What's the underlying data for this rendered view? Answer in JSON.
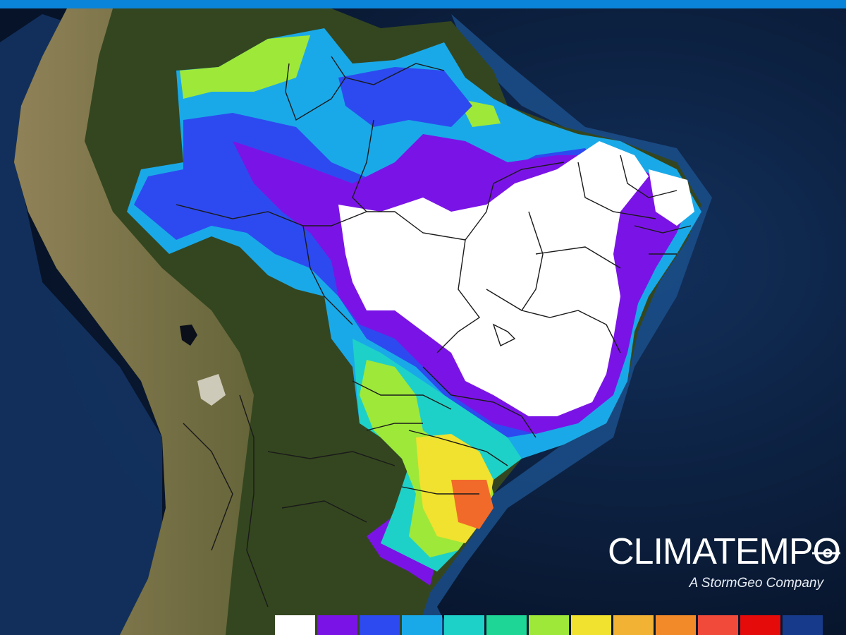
{
  "header": {
    "accent_color": "#0a84d8"
  },
  "map": {
    "region": "Brazil",
    "basemap": "satellite-relief",
    "ocean_color": "#0d2448",
    "land_color": "#33461f",
    "andes_color": "#8c7a55",
    "state_border_color": "#1a1a1a",
    "precipitation_overlay": {
      "heavy_color": "#ffffff",
      "very_high_color": "#7a14e6",
      "high_color": "#2d4af0",
      "moderate_color": "#1aa9e8",
      "medium_color": "#1ed1c8",
      "low_color": "#9ee83a",
      "lower_color": "#f0e22e",
      "lowest_color": "#f2a23a",
      "minimal_color": "#f26a2a"
    }
  },
  "brand": {
    "name": "CLIMATEMPO",
    "tagline": "A StormGeo Company",
    "icon": "arrow-line-icon"
  },
  "legend": {
    "swatches": [
      {
        "color": "#ffffff"
      },
      {
        "color": "#7a14e6"
      },
      {
        "color": "#2d4af0"
      },
      {
        "color": "#1aa9e8"
      },
      {
        "color": "#1ed1c8"
      },
      {
        "color": "#1ed696"
      },
      {
        "color": "#9ee83a"
      },
      {
        "color": "#f0e22e"
      },
      {
        "color": "#f2b334"
      },
      {
        "color": "#f28a2a"
      },
      {
        "color": "#f24a3a"
      },
      {
        "color": "#e60b0b"
      },
      {
        "color": "#183a8a"
      }
    ]
  }
}
